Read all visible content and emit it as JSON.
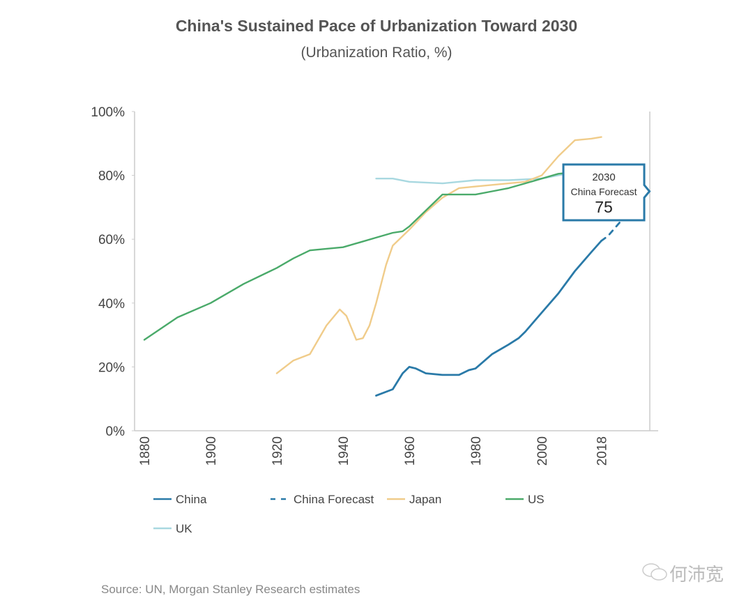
{
  "title": "China's Sustained Pace of Urbanization Toward 2030",
  "subtitle": "(Urbanization Ratio, %)",
  "source": "Source: UN, Morgan Stanley Research estimates",
  "watermark": "何沛宽",
  "tooltip": {
    "year": "2030",
    "label": "China Forecast",
    "value": "75"
  },
  "chart_data": {
    "type": "line",
    "title": "China's Sustained Pace of Urbanization Toward 2030",
    "subtitle": "(Urbanization Ratio, %)",
    "xlabel": "",
    "ylabel": "Urbanization Ratio, %",
    "xlim": [
      1877,
      2033
    ],
    "ylim": [
      0,
      100
    ],
    "x_ticks": [
      "1880",
      "1900",
      "1920",
      "1940",
      "1960",
      "1980",
      "2000",
      "2018"
    ],
    "y_ticks": [
      "0%",
      "20%",
      "40%",
      "60%",
      "80%",
      "100%"
    ],
    "y_tick_values": [
      0,
      20,
      40,
      60,
      80,
      100
    ],
    "x_tick_values": [
      1880,
      1900,
      1920,
      1940,
      1960,
      1980,
      2000,
      2018
    ],
    "legend_position": "bottom",
    "series": [
      {
        "name": "China",
        "color": "#2a7aa8",
        "dash": false,
        "x": [
          1950,
          1955,
          1958,
          1960,
          1962,
          1965,
          1970,
          1975,
          1978,
          1980,
          1985,
          1990,
          1993,
          1995,
          2000,
          2005,
          2010,
          2015,
          2018
        ],
        "y": [
          11,
          13,
          18,
          20,
          19.5,
          18,
          17.5,
          17.5,
          19,
          19.5,
          24,
          27,
          29,
          31,
          37,
          43,
          50,
          56,
          59.5
        ]
      },
      {
        "name": "China Forecast",
        "color": "#2a7aa8",
        "dash": true,
        "x": [
          2018,
          2020,
          2025,
          2030
        ],
        "y": [
          59.5,
          61,
          67,
          75
        ]
      },
      {
        "name": "Japan",
        "color": "#f0cc8a",
        "dash": false,
        "x": [
          1920,
          1925,
          1930,
          1935,
          1939,
          1941,
          1944,
          1946,
          1948,
          1950,
          1953,
          1955,
          1960,
          1965,
          1970,
          1975,
          1980,
          1985,
          1990,
          1995,
          2000,
          2005,
          2010,
          2015,
          2018
        ],
        "y": [
          18,
          22,
          24,
          33,
          38,
          36,
          28.5,
          29,
          33,
          40,
          52,
          58,
          63,
          68.5,
          73,
          76,
          76.5,
          77,
          77.5,
          78,
          80,
          86,
          91,
          91.5,
          92
        ]
      },
      {
        "name": "US",
        "color": "#4aaa6a",
        "dash": false,
        "x": [
          1880,
          1890,
          1900,
          1910,
          1920,
          1925,
          1930,
          1935,
          1940,
          1945,
          1950,
          1955,
          1958,
          1960,
          1965,
          1970,
          1975,
          1980,
          1985,
          1990,
          1995,
          2000,
          2005,
          2010
        ],
        "y": [
          28.5,
          35.5,
          40,
          46,
          51,
          54,
          56.5,
          57,
          57.5,
          59,
          60.5,
          62,
          62.5,
          64,
          69,
          74,
          74,
          74,
          75,
          76,
          77.5,
          79,
          80.5,
          81
        ]
      },
      {
        "name": "UK",
        "color": "#a8d8e0",
        "dash": false,
        "x": [
          1950,
          1955,
          1960,
          1970,
          1975,
          1980,
          1990,
          2000,
          2010,
          2018
        ],
        "y": [
          79,
          79,
          78,
          77.5,
          78,
          78.5,
          78.5,
          79,
          81,
          82.5
        ]
      }
    ],
    "annotations": [
      {
        "x": 2030,
        "y": 75,
        "text": "2030 China Forecast 75"
      }
    ]
  }
}
